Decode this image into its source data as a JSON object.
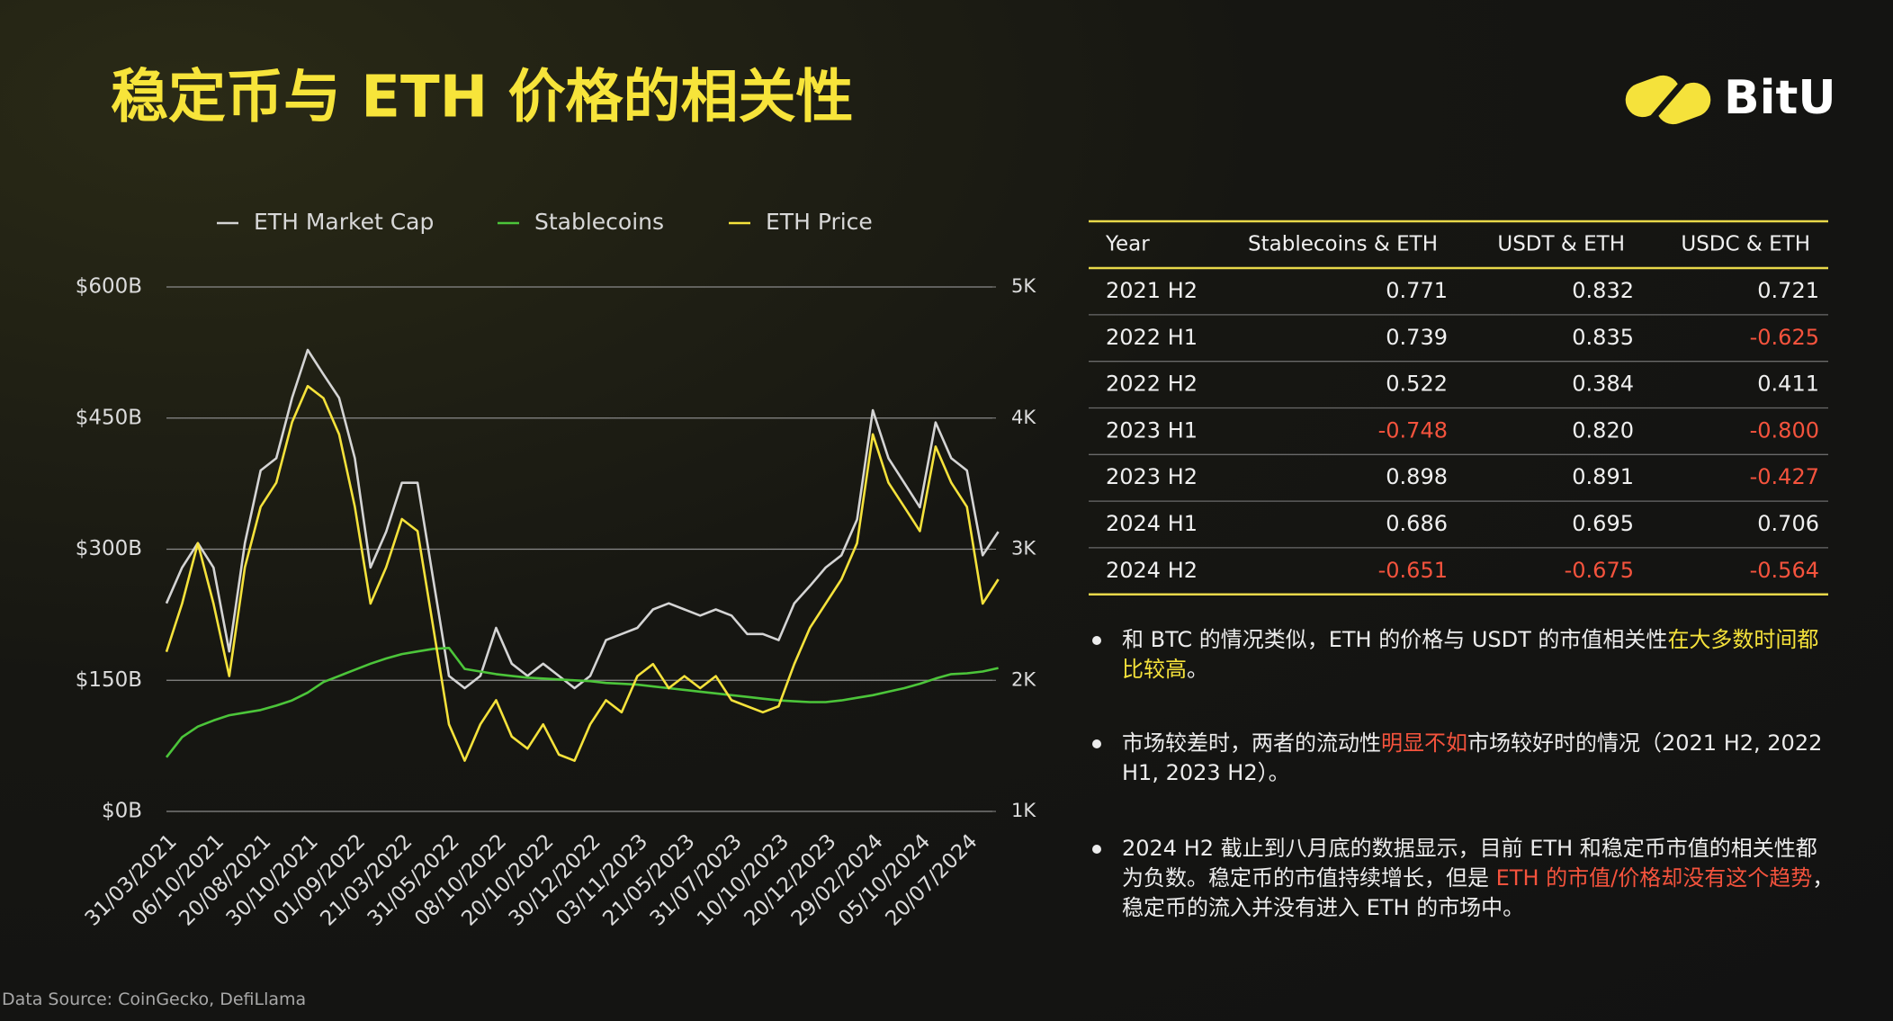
{
  "header": {
    "title": "稳定币与 ETH 价格的相关性",
    "logo": "BitU"
  },
  "chart_data": {
    "type": "line",
    "categories": [
      "31/03/2021",
      null,
      null,
      "06/10/2021",
      null,
      null,
      "20/08/2021",
      null,
      null,
      "30/10/2021",
      null,
      null,
      "01/09/2022",
      null,
      null,
      "21/03/2022",
      null,
      null,
      "31/05/2022",
      null,
      null,
      "08/10/2022",
      null,
      null,
      "20/10/2022",
      null,
      null,
      "30/12/2022",
      null,
      null,
      "03/11/2023",
      null,
      null,
      "21/05/2023",
      null,
      null,
      "31/07/2023",
      null,
      null,
      "10/10/2023",
      null,
      null,
      "20/12/2023",
      null,
      null,
      "29/02/2024",
      null,
      null,
      "05/10/2024",
      null,
      null,
      "20/07/2024",
      null,
      null
    ],
    "series": [
      {
        "name": "ETH Market Cap",
        "color": "#d4d4d4",
        "axis": "y",
        "values": [
          238,
          279,
          307,
          279,
          183,
          307,
          390,
          404,
          473,
          528,
          500,
          473,
          404,
          279,
          320,
          376,
          376,
          265,
          155,
          141,
          155,
          210,
          169,
          155,
          169,
          155,
          141,
          155,
          196,
          203,
          210,
          231,
          238,
          231,
          224,
          231,
          224,
          203,
          203,
          196,
          238,
          258,
          279,
          293,
          334,
          459,
          404,
          376,
          348,
          445,
          404,
          390,
          293,
          320
        ]
      },
      {
        "name": "Stablecoins",
        "color": "#4cc53a",
        "axis": "y",
        "values": [
          62,
          85,
          97,
          104,
          110,
          113,
          116,
          121,
          127,
          136,
          148,
          155,
          162,
          169,
          175,
          180,
          183,
          186,
          187,
          163,
          160,
          157,
          155,
          153,
          152,
          151,
          150,
          149,
          147,
          146,
          145,
          143,
          141,
          139,
          137,
          135,
          133,
          131,
          129,
          127,
          126,
          125,
          125,
          127,
          130,
          133,
          137,
          141,
          146,
          152,
          157,
          158,
          160,
          164
        ]
      },
      {
        "name": "ETH Price",
        "color": "#f5e23b",
        "axis": "y2",
        "values": [
          2217,
          2585,
          3046,
          2585,
          2032,
          2862,
          3323,
          3507,
          3968,
          4244,
          4152,
          3876,
          3323,
          2585,
          2862,
          3230,
          3138,
          2401,
          1664,
          1387,
          1664,
          1848,
          1571,
          1479,
          1664,
          1433,
          1387,
          1664,
          1848,
          1756,
          2032,
          2124,
          1940,
          2032,
          1940,
          2032,
          1848,
          1802,
          1756,
          1802,
          2124,
          2401,
          2585,
          2770,
          3046,
          3876,
          3507,
          3323,
          3138,
          3783,
          3507,
          3323,
          2585,
          2770
        ]
      }
    ],
    "ylim": [
      0,
      600
    ],
    "yticks": [
      {
        "value": 0,
        "label": "$0B"
      },
      {
        "value": 150,
        "label": "$150B"
      },
      {
        "value": 300,
        "label": "$300B"
      },
      {
        "value": 450,
        "label": "$450B"
      },
      {
        "value": 600,
        "label": "$600B"
      }
    ],
    "y2lim": [
      1000,
      5000
    ],
    "y2ticks": [
      {
        "value": 1000,
        "label": "1K"
      },
      {
        "value": 2000,
        "label": "2K"
      },
      {
        "value": 3000,
        "label": "3K"
      },
      {
        "value": 4000,
        "label": "4K"
      },
      {
        "value": 5000,
        "label": "5K"
      }
    ],
    "grid": true,
    "legend": "top"
  },
  "table": {
    "columns": [
      "Year",
      "Stablecoins & ETH",
      "USDT & ETH",
      "USDC & ETH"
    ],
    "rows": [
      [
        "2021 H2",
        "0.771",
        "0.832",
        "0.721"
      ],
      [
        "2022 H1",
        "0.739",
        "0.835",
        "-0.625"
      ],
      [
        "2022 H2",
        "0.522",
        "0.384",
        "0.411"
      ],
      [
        "2023 H1",
        "-0.748",
        "0.820",
        "-0.800"
      ],
      [
        "2023 H2",
        "0.898",
        "0.891",
        "-0.427"
      ],
      [
        "2024 H1",
        "0.686",
        "0.695",
        "0.706"
      ],
      [
        "2024 H2",
        "-0.651",
        "-0.675",
        "-0.564"
      ]
    ],
    "negative_color": "#f5533d"
  },
  "bullets": [
    [
      {
        "text": "和 BTC 的情况类似，ETH 的价格与 USDT 的市值相关性"
      },
      {
        "text": "在大多数时间都比较高",
        "color": "#f5e23b"
      },
      {
        "text": "。"
      }
    ],
    [
      {
        "text": "市场较差时，两者的流动性"
      },
      {
        "text": "明显不如",
        "color": "#f5533d"
      },
      {
        "text": "市场较好时的情况（2021 H2, 2022 H1, 2023 H2）。"
      }
    ],
    [
      {
        "text": "2024 H2 截止到八月底的数据显示，目前 ETH 和稳定币市值的相关性都为负数。稳定币的市值持续增长，但是 "
      },
      {
        "text": "ETH 的市值/价格却没有这个趋势",
        "color": "#f5533d"
      },
      {
        "text": "，稳定币的流入并没有进入 ETH 的市场中。"
      }
    ]
  ],
  "source": "Data Source: CoinGecko, DefiLlama"
}
